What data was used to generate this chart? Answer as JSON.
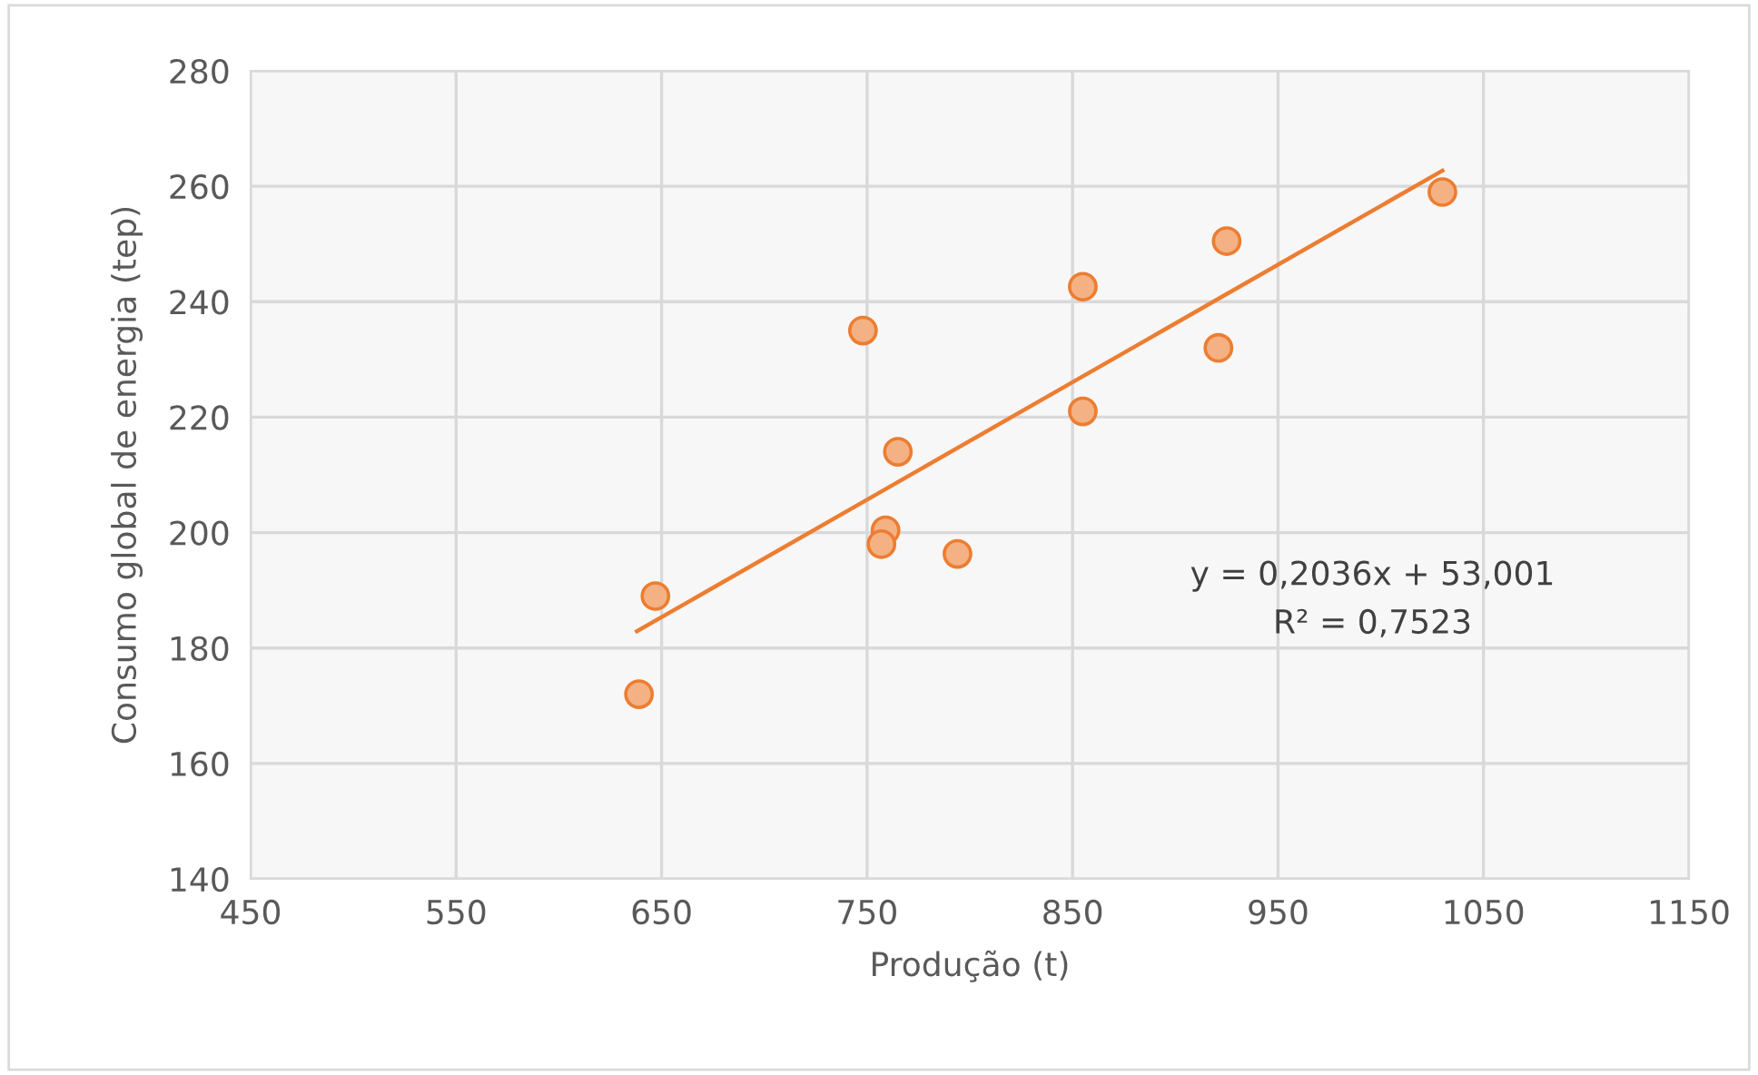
{
  "chart_data": {
    "type": "scatter",
    "xlabel": "Produção (t)",
    "ylabel": "Consumo global de energia (tep)",
    "xlim": [
      450,
      1150
    ],
    "xticks": [
      450,
      550,
      650,
      750,
      850,
      950,
      1050,
      1150
    ],
    "ylim": [
      140,
      280
    ],
    "yticks": [
      140,
      160,
      180,
      200,
      220,
      240,
      260,
      280
    ],
    "grid": true,
    "legend": false,
    "annotations": [
      "y = 0,2036x + 53,001",
      "R² = 0,7523"
    ],
    "series": [
      {
        "marker": "circle",
        "color": "#f4b183",
        "x": [
          639,
          647,
          748,
          759,
          757,
          765,
          794,
          855,
          855,
          921,
          925,
          1030
        ],
        "values": [
          172,
          189,
          235,
          200.4,
          198,
          214,
          196.3,
          242.6,
          221,
          232,
          250.5,
          259
        ]
      },
      {
        "type": "line",
        "marker": "none",
        "color": "#ed7d31",
        "x": [
          638,
          1030
        ],
        "values": [
          182.9,
          262.7
        ]
      }
    ]
  }
}
